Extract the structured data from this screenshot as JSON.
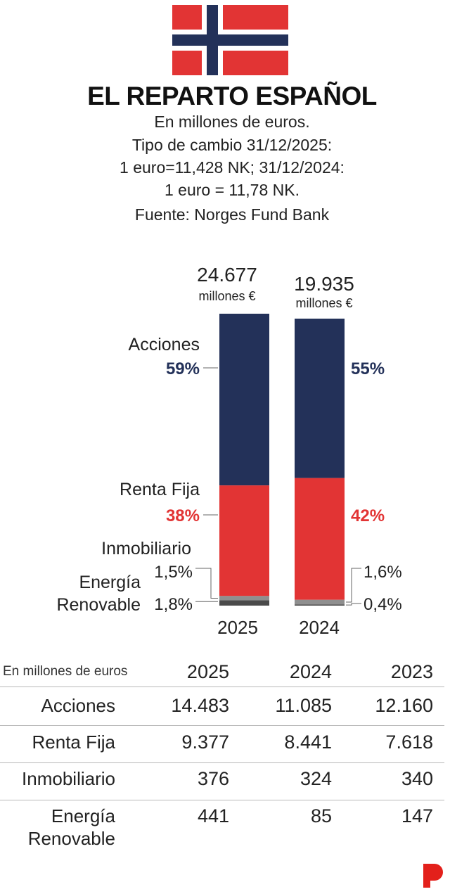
{
  "header": {
    "title": "EL REPARTO ESPAÑOL",
    "subtitle_lines": [
      "En millones de euros.",
      "Tipo de cambio 31/12/2025:",
      "1 euro=11,428 NK; 31/12/2024:",
      "1 euro =  11,78 NK."
    ],
    "source": "Fuente: Norges Fund Bank"
  },
  "colors": {
    "navy": "#233159",
    "red": "#e23434",
    "grey": "#8f8f8f",
    "dark_grey": "#4a4a4a"
  },
  "chart_data": {
    "type": "bar",
    "stacked": true,
    "normalized": true,
    "categories": [
      "2025",
      "2024"
    ],
    "totals": [
      {
        "value": "24.677",
        "unit": "millones €"
      },
      {
        "value": "19.935",
        "unit": "millones €"
      }
    ],
    "series": [
      {
        "name": "Acciones",
        "values": [
          59,
          55
        ],
        "labels": [
          "59%",
          "55%"
        ]
      },
      {
        "name": "Renta Fija",
        "values": [
          38,
          42
        ],
        "labels": [
          "38%",
          "42%"
        ]
      },
      {
        "name": "Inmobiliario",
        "values": [
          1.5,
          1.6
        ],
        "labels": [
          "1,5%",
          "1,6%"
        ]
      },
      {
        "name": "Energía Renovable",
        "values": [
          1.8,
          0.4
        ],
        "labels": [
          "1,8%",
          "0,4%"
        ]
      }
    ],
    "label_left": {
      "acciones": "Acciones",
      "renta_fija": "Renta Fija",
      "inmobiliario": "Inmobiliario",
      "energia_1": "Energía",
      "energia_2": "Renovable"
    }
  },
  "table": {
    "caption": "En millones de euros",
    "years": [
      "2025",
      "2024",
      "2023"
    ],
    "rows": [
      {
        "label": "Acciones",
        "values": [
          "14.483",
          "11.085",
          "12.160"
        ]
      },
      {
        "label": "Renta Fija",
        "values": [
          "9.377",
          "8.441",
          "7.618"
        ]
      },
      {
        "label": "Inmobiliario",
        "values": [
          "376",
          "324",
          "340"
        ]
      },
      {
        "label_line1": "Energía",
        "label_line2": "Renovable",
        "values": [
          "441",
          "85",
          "147"
        ]
      }
    ]
  },
  "logo": {
    "name": "publication-logo"
  }
}
